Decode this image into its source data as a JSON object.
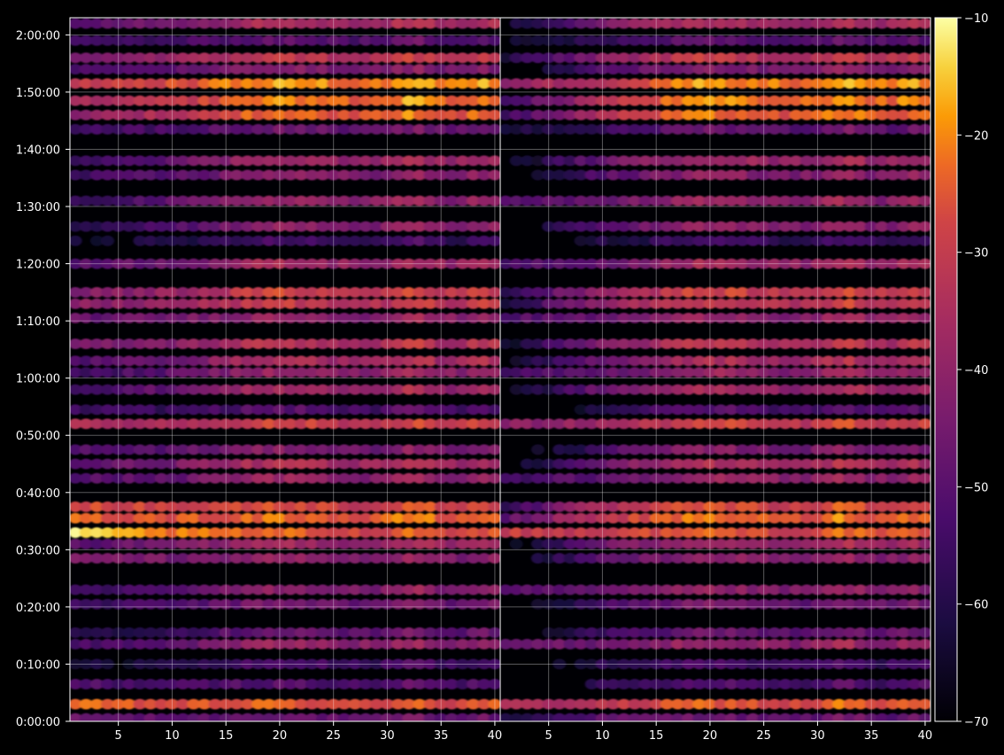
{
  "chart_data": {
    "type": "heatmap",
    "title": "",
    "xlabel": "",
    "ylabel": "",
    "colormap": "inferno",
    "background": "#000000",
    "grid": true,
    "panels": [
      {
        "name": "",
        "xlim": [
          1,
          40
        ],
        "xticks": [
          5,
          10,
          15,
          20,
          25,
          30,
          35,
          40
        ],
        "xtick_labels": [
          "5",
          "10",
          "15",
          "20",
          "25",
          "30",
          "35",
          "40"
        ]
      },
      {
        "name": "",
        "xlim": [
          1,
          40
        ],
        "xticks": [
          5,
          10,
          15,
          20,
          25,
          30,
          35,
          40
        ],
        "xtick_labels": [
          "5",
          "10",
          "15",
          "20",
          "25",
          "30",
          "35",
          "40"
        ]
      }
    ],
    "ylim_seconds": [
      0,
      7380
    ],
    "yticks_seconds": [
      0,
      600,
      1200,
      1800,
      2400,
      3000,
      3600,
      4200,
      4800,
      5400,
      6000,
      6600,
      7200
    ],
    "ytick_labels": [
      "0:00:00",
      "0:10:00",
      "0:20:00",
      "0:30:00",
      "0:40:00",
      "0:50:00",
      "1:00:00",
      "1:10:00",
      "1:20:00",
      "1:30:00",
      "1:40:00",
      "1:50:00",
      "2:00:00"
    ],
    "colorbar": {
      "range": [
        -70,
        -10
      ],
      "ticks": [
        -70,
        -60,
        -50,
        -40,
        -30,
        -20,
        -10
      ],
      "tick_labels": [
        "−70",
        "−60",
        "−50",
        "−40",
        "−30",
        "−20",
        "−10"
      ]
    },
    "bands": [
      {
        "time": "0:00:30",
        "level": -52,
        "p1_level": -48,
        "p2_level": -46
      },
      {
        "time": "0:03:00",
        "level": -30,
        "p1_level": -24,
        "p2_level": -36
      },
      {
        "time": "0:06:30",
        "level": -56,
        "p1_level": -52,
        "p2_level": -62
      },
      {
        "time": "0:10:00",
        "level": -58,
        "p1_level": -64,
        "p2_level": -60
      },
      {
        "time": "0:13:30",
        "level": -44,
        "p1_level": -54,
        "p2_level": -48
      },
      {
        "time": "0:15:30",
        "level": -52,
        "p1_level": -60,
        "p2_level": -58
      },
      {
        "time": "0:20:30",
        "level": -50,
        "p1_level": -56,
        "p2_level": -56
      },
      {
        "time": "0:23:00",
        "level": -46,
        "p1_level": -58,
        "p2_level": -52
      },
      {
        "time": "0:28:30",
        "level": -46,
        "p1_level": -44,
        "p2_level": -54
      },
      {
        "time": "0:31:00",
        "level": -42,
        "p1_level": -50,
        "p2_level": -52
      },
      {
        "time": "0:33:00",
        "level": -30,
        "p1_level": -14,
        "p2_level": -30
      },
      {
        "time": "0:35:30",
        "level": -28,
        "p1_level": -24,
        "p2_level": -34
      },
      {
        "time": "0:37:30",
        "level": -32,
        "p1_level": -26,
        "p2_level": -40
      },
      {
        "time": "0:42:30",
        "level": -44,
        "p1_level": -52,
        "p2_level": -54
      },
      {
        "time": "0:45:00",
        "level": -40,
        "p1_level": -50,
        "p2_level": -52
      },
      {
        "time": "0:47:30",
        "level": -48,
        "p1_level": -52,
        "p2_level": -58
      },
      {
        "time": "0:52:00",
        "level": -34,
        "p1_level": -36,
        "p2_level": -42
      },
      {
        "time": "0:54:30",
        "level": -56,
        "p1_level": -56,
        "p2_level": -62
      },
      {
        "time": "0:58:00",
        "level": -42,
        "p1_level": -54,
        "p2_level": -52
      },
      {
        "time": "1:01:00",
        "level": -44,
        "p1_level": -56,
        "p2_level": -54
      },
      {
        "time": "1:03:00",
        "level": -40,
        "p1_level": -52,
        "p2_level": -52
      },
      {
        "time": "1:06:00",
        "level": -38,
        "p1_level": -46,
        "p2_level": -48
      },
      {
        "time": "1:10:30",
        "level": -44,
        "p1_level": -48,
        "p2_level": -52
      },
      {
        "time": "1:13:00",
        "level": -36,
        "p1_level": -42,
        "p2_level": -44
      },
      {
        "time": "1:15:00",
        "level": -34,
        "p1_level": -44,
        "p2_level": -42
      },
      {
        "time": "1:20:00",
        "level": -42,
        "p1_level": -50,
        "p2_level": -52
      },
      {
        "time": "1:24:00",
        "level": -60,
        "p1_level": -64,
        "p2_level": -64
      },
      {
        "time": "1:26:30",
        "level": -46,
        "p1_level": -58,
        "p2_level": -56
      },
      {
        "time": "1:31:00",
        "level": -44,
        "p1_level": -56,
        "p2_level": -52
      },
      {
        "time": "1:35:30",
        "level": -46,
        "p1_level": -56,
        "p2_level": -56
      },
      {
        "time": "1:38:00",
        "level": -42,
        "p1_level": -54,
        "p2_level": -52
      },
      {
        "time": "1:43:30",
        "level": -52,
        "p1_level": -54,
        "p2_level": -62
      },
      {
        "time": "1:46:00",
        "level": -28,
        "p1_level": -40,
        "p2_level": -40
      },
      {
        "time": "1:48:30",
        "level": -26,
        "p1_level": -38,
        "p2_level": -40
      },
      {
        "time": "1:51:30",
        "level": -24,
        "p1_level": -30,
        "p2_level": -40
      },
      {
        "time": "1:54:00",
        "level": -48,
        "p1_level": -52,
        "p2_level": -56
      },
      {
        "time": "1:56:00",
        "level": -36,
        "p1_level": -44,
        "p2_level": -46
      },
      {
        "time": "1:59:00",
        "level": -54,
        "p1_level": -56,
        "p2_level": -64
      },
      {
        "time": "2:02:00",
        "level": -40,
        "p1_level": -48,
        "p2_level": -48
      }
    ],
    "hot_columns": [
      {
        "x": 20,
        "boost": 6,
        "width": 6
      },
      {
        "x": 32.5,
        "boost": 8,
        "width": 2.5
      },
      {
        "x": 39,
        "boost": 6,
        "width": 2
      }
    ],
    "p2_onset_x": 10
  }
}
